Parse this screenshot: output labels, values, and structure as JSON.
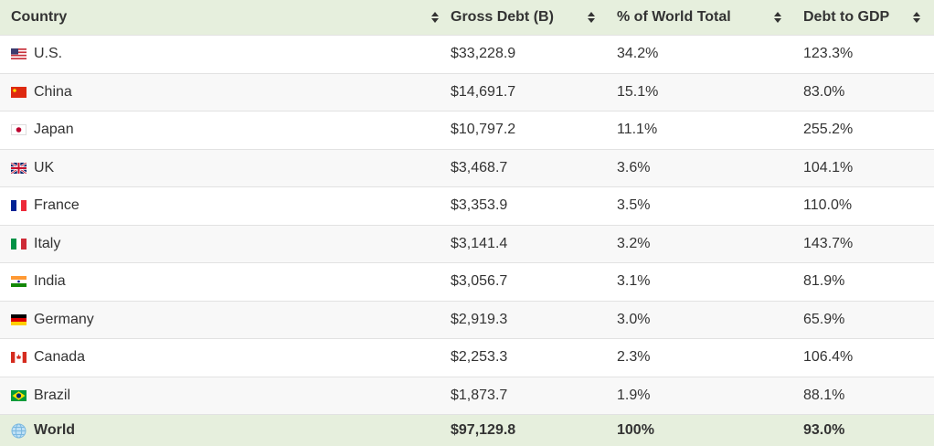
{
  "table": {
    "headers": [
      "Country",
      "Gross Debt (B)",
      "% of World Total",
      "Debt to GDP"
    ],
    "rows": [
      [
        "U.S.",
        "$33,228.9",
        "34.2%",
        "123.3%"
      ],
      [
        "China",
        "$14,691.7",
        "15.1%",
        "83.0%"
      ],
      [
        "Japan",
        "$10,797.2",
        "11.1%",
        "255.2%"
      ],
      [
        "UK",
        "$3,468.7",
        "3.6%",
        "104.1%"
      ],
      [
        "France",
        "$3,353.9",
        "3.5%",
        "110.0%"
      ],
      [
        "Italy",
        "$3,141.4",
        "3.2%",
        "143.7%"
      ],
      [
        "India",
        "$3,056.7",
        "3.1%",
        "81.9%"
      ],
      [
        "Germany",
        "$2,919.3",
        "3.0%",
        "65.9%"
      ],
      [
        "Canada",
        "$2,253.3",
        "2.3%",
        "106.4%"
      ],
      [
        "Brazil",
        "$1,873.7",
        "1.9%",
        "88.1%"
      ]
    ],
    "footer": [
      "World",
      "$97,129.8",
      "100%",
      "93.0%"
    ]
  }
}
